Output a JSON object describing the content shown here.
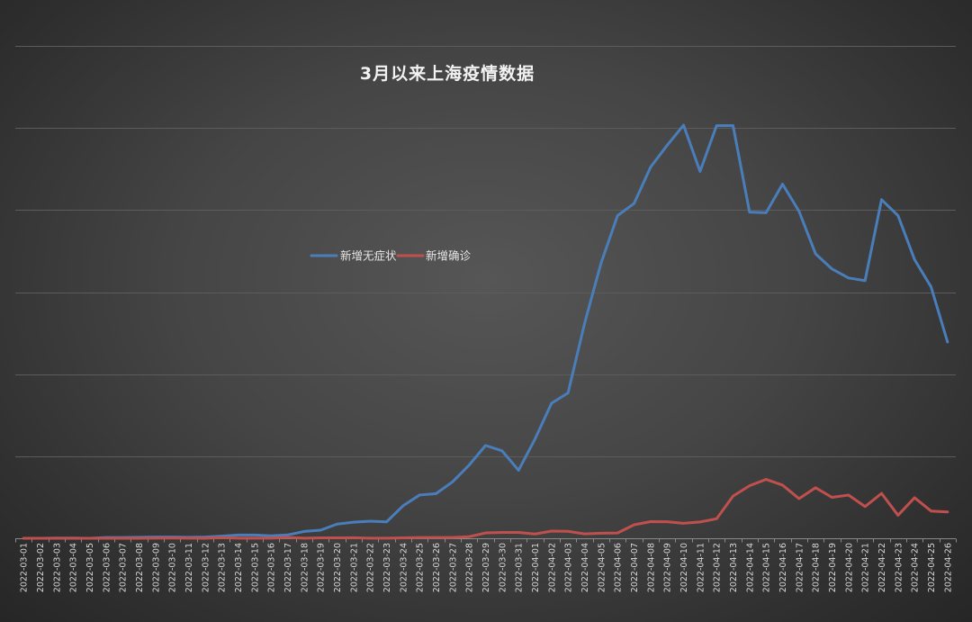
{
  "chart_data": {
    "type": "line",
    "title": "3月以来上海疫情数据",
    "xlabel": "",
    "ylabel": "",
    "ylim": [
      0,
      30000
    ],
    "y_gridlines": [
      0,
      5000,
      10000,
      15000,
      20000,
      25000,
      30000
    ],
    "y_tick_labels_visible": false,
    "grid": true,
    "legend_position": "center-left",
    "categories": [
      "2022-03-01",
      "2022-03-02",
      "2022-03-03",
      "2022-03-04",
      "2022-03-05",
      "2022-03-06",
      "2022-03-07",
      "2022-03-08",
      "2022-03-09",
      "2022-03-10",
      "2022-03-11",
      "2022-03-12",
      "2022-03-13",
      "2022-03-14",
      "2022-03-15",
      "2022-03-16",
      "2022-03-17",
      "2022-03-18",
      "2022-03-19",
      "2022-03-20",
      "2022-03-21",
      "2022-03-22",
      "2022-03-23",
      "2022-03-24",
      "2022-03-25",
      "2022-03-26",
      "2022-03-27",
      "2022-03-28",
      "2022-03-29",
      "2022-03-30",
      "2022-03-31",
      "2022-04-01",
      "2022-04-02",
      "2022-04-03",
      "2022-04-04",
      "2022-04-05",
      "2022-04-06",
      "2022-04-07",
      "2022-04-08",
      "2022-04-09",
      "2022-04-10",
      "2022-04-11",
      "2022-04-12",
      "2022-04-13",
      "2022-04-14",
      "2022-04-15",
      "2022-04-16",
      "2022-04-17",
      "2022-04-18",
      "2022-04-19",
      "2022-04-20",
      "2022-04-21",
      "2022-04-22",
      "2022-04-23",
      "2022-04-24",
      "2022-04-25",
      "2022-04-26"
    ],
    "series": [
      {
        "name": "新增无症状",
        "color": "#4a7ebb",
        "values": [
          1,
          2,
          14,
          16,
          1,
          45,
          51,
          62,
          74,
          75,
          64,
          76,
          130,
          197,
          202,
          150,
          203,
          416,
          492,
          865,
          982,
          1045,
          1001,
          1980,
          2636,
          2722,
          3438,
          4456,
          5656,
          5328,
          4144,
          6051,
          8226,
          8858,
          13086,
          16766,
          19660,
          20398,
          22609,
          23937,
          25173,
          22348,
          25141,
          25146,
          19872,
          19831,
          21582,
          19923,
          17332,
          16407,
          15861,
          15698,
          20634,
          19657,
          16983,
          15319,
          11956
        ]
      },
      {
        "name": "新增确诊",
        "color": "#c0504d",
        "values": [
          2,
          3,
          2,
          3,
          0,
          3,
          1,
          3,
          4,
          11,
          5,
          1,
          41,
          9,
          5,
          8,
          57,
          8,
          24,
          24,
          31,
          4,
          4,
          29,
          45,
          45,
          50,
          96,
          326,
          355,
          358,
          260,
          438,
          425,
          268,
          311,
          322,
          824,
          1015,
          1006,
          914,
          994,
          1189,
          2573,
          3200,
          3590,
          3238,
          2417,
          3084,
          2494,
          2634,
          1931,
          2736,
          1401,
          2472,
          1661,
          1606
        ]
      }
    ]
  }
}
